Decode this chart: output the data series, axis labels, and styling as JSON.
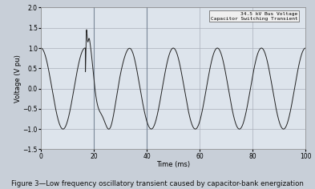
{
  "title": "Figure 3—Low frequency oscillatory transient caused by capacitor-bank energization",
  "xlabel": "Time (ms)",
  "ylabel": "Voltage (V pu)",
  "xlim": [
    0,
    100
  ],
  "ylim": [
    -1.5,
    2.0
  ],
  "yticks": [
    -1.5,
    -1.0,
    -0.5,
    0.0,
    0.5,
    1.0,
    1.5,
    2.0
  ],
  "xticks": [
    0,
    20,
    40,
    60,
    80,
    100
  ],
  "legend_lines": [
    "34.5 kV Bus Voltage",
    "Capacitor Switching Transient"
  ],
  "fig_bg": "#c8cfd8",
  "plot_bg": "#dde4ec",
  "grid_color": "#aab0bb",
  "line_color": "#222222",
  "switch_time": 17.0,
  "fundamental_freq": 60,
  "transient_osc_freq": 180,
  "transient_duration": 18.0,
  "transient_decay_tau": 5.0,
  "spike_amp": 0.65,
  "spike_freq": 900,
  "spike_decay_tau": 0.4
}
